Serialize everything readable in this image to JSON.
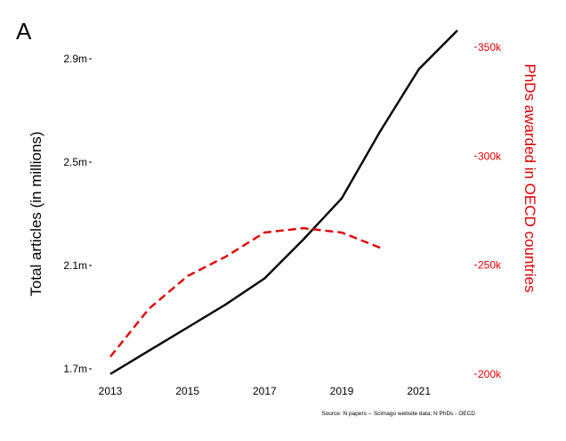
{
  "panel_label": "A",
  "source_note": "Source: N papers -- Scimago website data; N PhDs - OECD",
  "chart_data": {
    "type": "line",
    "x": [
      2013,
      2014,
      2015,
      2016,
      2017,
      2018,
      2019,
      2020,
      2021,
      2022
    ],
    "x_ticks": [
      2013,
      2015,
      2017,
      2019,
      2021
    ],
    "xlim": [
      2013,
      2022
    ],
    "left_axis": {
      "label": "Total articles (in millions)",
      "ticks": [
        "1.7m",
        "2.1m",
        "2.5m",
        "2.9m"
      ],
      "tick_values": [
        1.7,
        2.1,
        2.5,
        2.9
      ],
      "ylim": [
        1.7,
        2.9
      ],
      "color": "#000000"
    },
    "right_axis": {
      "label": "PhDs awarded in OECD countries",
      "ticks": [
        "200k",
        "250k",
        "300k",
        "350k"
      ],
      "tick_values": [
        200,
        250,
        300,
        350
      ],
      "ylim": [
        200,
        350
      ],
      "color": "#dd0000"
    },
    "series": [
      {
        "axis": "left",
        "style": "solid",
        "color": "#000000",
        "x": [
          2013,
          2014,
          2015,
          2016,
          2017,
          2018,
          2019,
          2020,
          2021,
          2022
        ],
        "values": [
          1.68,
          1.77,
          1.86,
          1.95,
          2.05,
          2.2,
          2.36,
          2.62,
          2.86,
          3.01
        ]
      },
      {
        "axis": "right",
        "style": "dashed",
        "color": "#dd0000",
        "x": [
          2013,
          2014,
          2015,
          2016,
          2017,
          2018,
          2019,
          2020
        ],
        "values": [
          208,
          230,
          245,
          254,
          265,
          267,
          265,
          258
        ]
      }
    ]
  }
}
